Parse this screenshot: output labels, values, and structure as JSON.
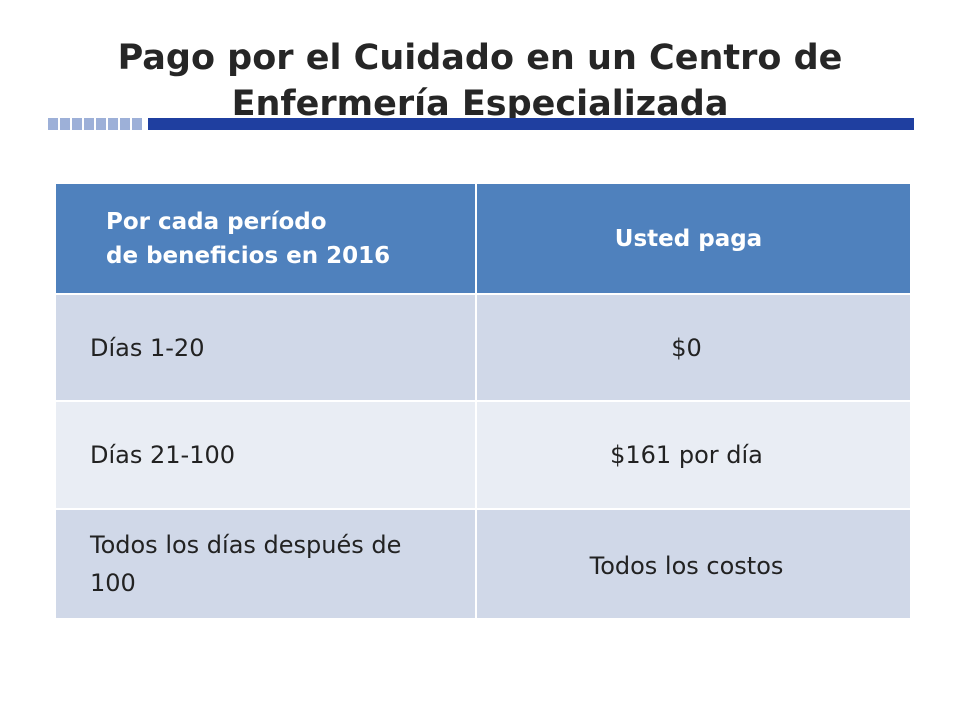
{
  "slide": {
    "title_lines": [
      "Pago por el Cuidado en un Centro de",
      "Enfermería Especializada"
    ],
    "accent_color": "#1f3fa0",
    "header_color": "#4f81bd"
  },
  "table": {
    "header": {
      "col1_lines": [
        "Por cada período",
        "de beneficios en 2016"
      ],
      "col2": "Usted paga"
    },
    "rows": [
      {
        "period": "Días 1-20",
        "pay": "$0"
      },
      {
        "period": "Días 21-100",
        "pay": "$161 por día"
      },
      {
        "period": "Todos los días después de 100",
        "pay": "Todos los costos"
      }
    ]
  }
}
